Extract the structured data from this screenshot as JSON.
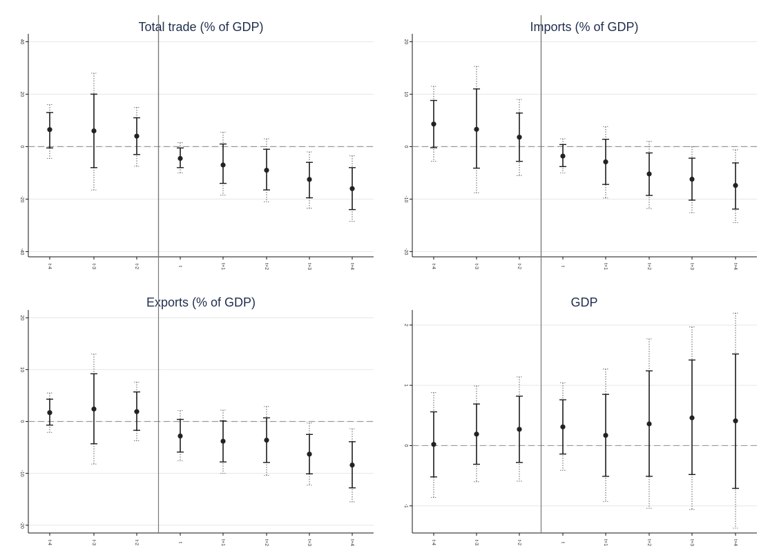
{
  "chart_data": [
    {
      "type": "errorbar",
      "title": "Total trade  (% of GDP)",
      "xlabel": "",
      "ylabel": "",
      "categories": [
        "t-4",
        "t-3",
        "t-2",
        "t",
        "t+1",
        "t+2",
        "t+3",
        "t+4"
      ],
      "yticks": [
        "-40",
        "-20",
        "0",
        "20",
        "40"
      ],
      "ytick_values": [
        -40,
        -20,
        0,
        20,
        40
      ],
      "ylim": [
        -42,
        43
      ],
      "estimate": [
        6.5,
        6,
        4,
        -4.5,
        -7,
        -9,
        -12.5,
        -16
      ],
      "ci95": [
        [
          -0.5,
          13
        ],
        [
          -8,
          20
        ],
        [
          -3,
          11
        ],
        [
          -8,
          -0.5
        ],
        [
          -14,
          1
        ],
        [
          -16.5,
          -1
        ],
        [
          -19.5,
          -6
        ],
        [
          -24,
          -8
        ]
      ],
      "ci90": [
        [
          -4.5,
          16
        ],
        [
          -16.5,
          28
        ],
        [
          -7.5,
          15
        ],
        [
          -10,
          1.5
        ],
        [
          -18.5,
          5.5
        ],
        [
          -21,
          3
        ],
        [
          -23.5,
          -2
        ],
        [
          -28.5,
          -3.5
        ]
      ],
      "zero_line": 0,
      "event_marker_between": [
        "t-2",
        "t"
      ]
    },
    {
      "type": "errorbar",
      "title": "Imports (% of GDP)",
      "xlabel": "",
      "ylabel": "",
      "categories": [
        "t-4",
        "t-3",
        "t-2",
        "t",
        "t+1",
        "t+2",
        "t+3",
        "t+4"
      ],
      "yticks": [
        "-20",
        "-10",
        "0",
        "10",
        "20"
      ],
      "ytick_values": [
        -20,
        -10,
        0,
        10,
        20
      ],
      "ylim": [
        -21,
        21.5
      ],
      "estimate": [
        4.3,
        3.3,
        1.8,
        -1.8,
        -2.9,
        -5.2,
        -6.2,
        -7.4
      ],
      "ci95": [
        [
          -0.2,
          8.8
        ],
        [
          -4.1,
          11
        ],
        [
          -2.8,
          6.4
        ],
        [
          -3.8,
          0.4
        ],
        [
          -7.2,
          1.4
        ],
        [
          -9.3,
          -1.2
        ],
        [
          -10.2,
          -2.2
        ],
        [
          -11.9,
          -3.1
        ]
      ],
      "ci90": [
        [
          -2.8,
          11.5
        ],
        [
          -8.8,
          15.3
        ],
        [
          -5.5,
          9
        ],
        [
          -5,
          1.5
        ],
        [
          -9.8,
          3.8
        ],
        [
          -11.8,
          1
        ],
        [
          -12.6,
          0
        ],
        [
          -14.5,
          -0.6
        ]
      ],
      "zero_line": 0,
      "event_marker_between": [
        "t-2",
        "t"
      ]
    },
    {
      "type": "errorbar",
      "title": "Exports (% of GDP)",
      "xlabel": "",
      "ylabel": "",
      "categories": [
        "t-4",
        "t-3",
        "t-2",
        "t",
        "t+1",
        "t+2",
        "t+3",
        "t+4"
      ],
      "yticks": [
        "-20",
        "-10",
        "0",
        "10",
        "20"
      ],
      "ytick_values": [
        -20,
        -10,
        0,
        10,
        20
      ],
      "ylim": [
        -21.5,
        21.5
      ],
      "estimate": [
        1.7,
        2.4,
        1.9,
        -2.8,
        -3.8,
        -3.6,
        -6.3,
        -8.4
      ],
      "ci95": [
        [
          -0.7,
          4.3
        ],
        [
          -4.3,
          9.2
        ],
        [
          -1.7,
          5.7
        ],
        [
          -5.9,
          0.4
        ],
        [
          -7.8,
          0.1
        ],
        [
          -7.9,
          0.7
        ],
        [
          -10.1,
          -2.5
        ],
        [
          -12.8,
          -3.9
        ]
      ],
      "ci90": [
        [
          -2.1,
          5.5
        ],
        [
          -8.2,
          13
        ],
        [
          -3.7,
          7.6
        ],
        [
          -7.6,
          2.1
        ],
        [
          -10,
          2.2
        ],
        [
          -10.4,
          2.9
        ],
        [
          -12.3,
          -0.3
        ],
        [
          -15.5,
          -1.4
        ]
      ],
      "zero_line": 0,
      "event_marker_between": [
        "t-2",
        "t"
      ]
    },
    {
      "type": "errorbar",
      "title": "GDP",
      "xlabel": "",
      "ylabel": "",
      "categories": [
        "t-4",
        "t-3",
        "t-2",
        "t",
        "t+1",
        "t+2",
        "t+3",
        "t+4"
      ],
      "yticks": [
        "-1",
        "0",
        "1",
        "2"
      ],
      "ytick_values": [
        -1,
        0,
        1,
        2
      ],
      "ylim": [
        -1.45,
        2.25
      ],
      "estimate": [
        0.02,
        0.19,
        0.27,
        0.31,
        0.17,
        0.36,
        0.46,
        0.41
      ],
      "ci95": [
        [
          -0.52,
          0.56
        ],
        [
          -0.31,
          0.69
        ],
        [
          -0.28,
          0.82
        ],
        [
          -0.14,
          0.76
        ],
        [
          -0.51,
          0.85
        ],
        [
          -0.51,
          1.24
        ],
        [
          -0.48,
          1.42
        ],
        [
          -0.71,
          1.52
        ]
      ],
      "ci90": [
        [
          -0.86,
          0.88
        ],
        [
          -0.6,
          0.99
        ],
        [
          -0.59,
          1.14
        ],
        [
          -0.41,
          1.04
        ],
        [
          -0.93,
          1.27
        ],
        [
          -1.04,
          1.77
        ],
        [
          -1.06,
          1.97
        ],
        [
          -1.37,
          2.2
        ]
      ],
      "zero_line": 0,
      "event_marker_between": [
        "t-2",
        "t"
      ]
    }
  ],
  "colors": {
    "point": "#222222",
    "ci95": "#1a1a1a",
    "ci90": "#555555",
    "zero_line": "#999999",
    "grid": "#e6e6e6",
    "axis": "#111111",
    "event_line": "#777777",
    "title": "#1f2d4d",
    "tick_label": "#333333"
  }
}
